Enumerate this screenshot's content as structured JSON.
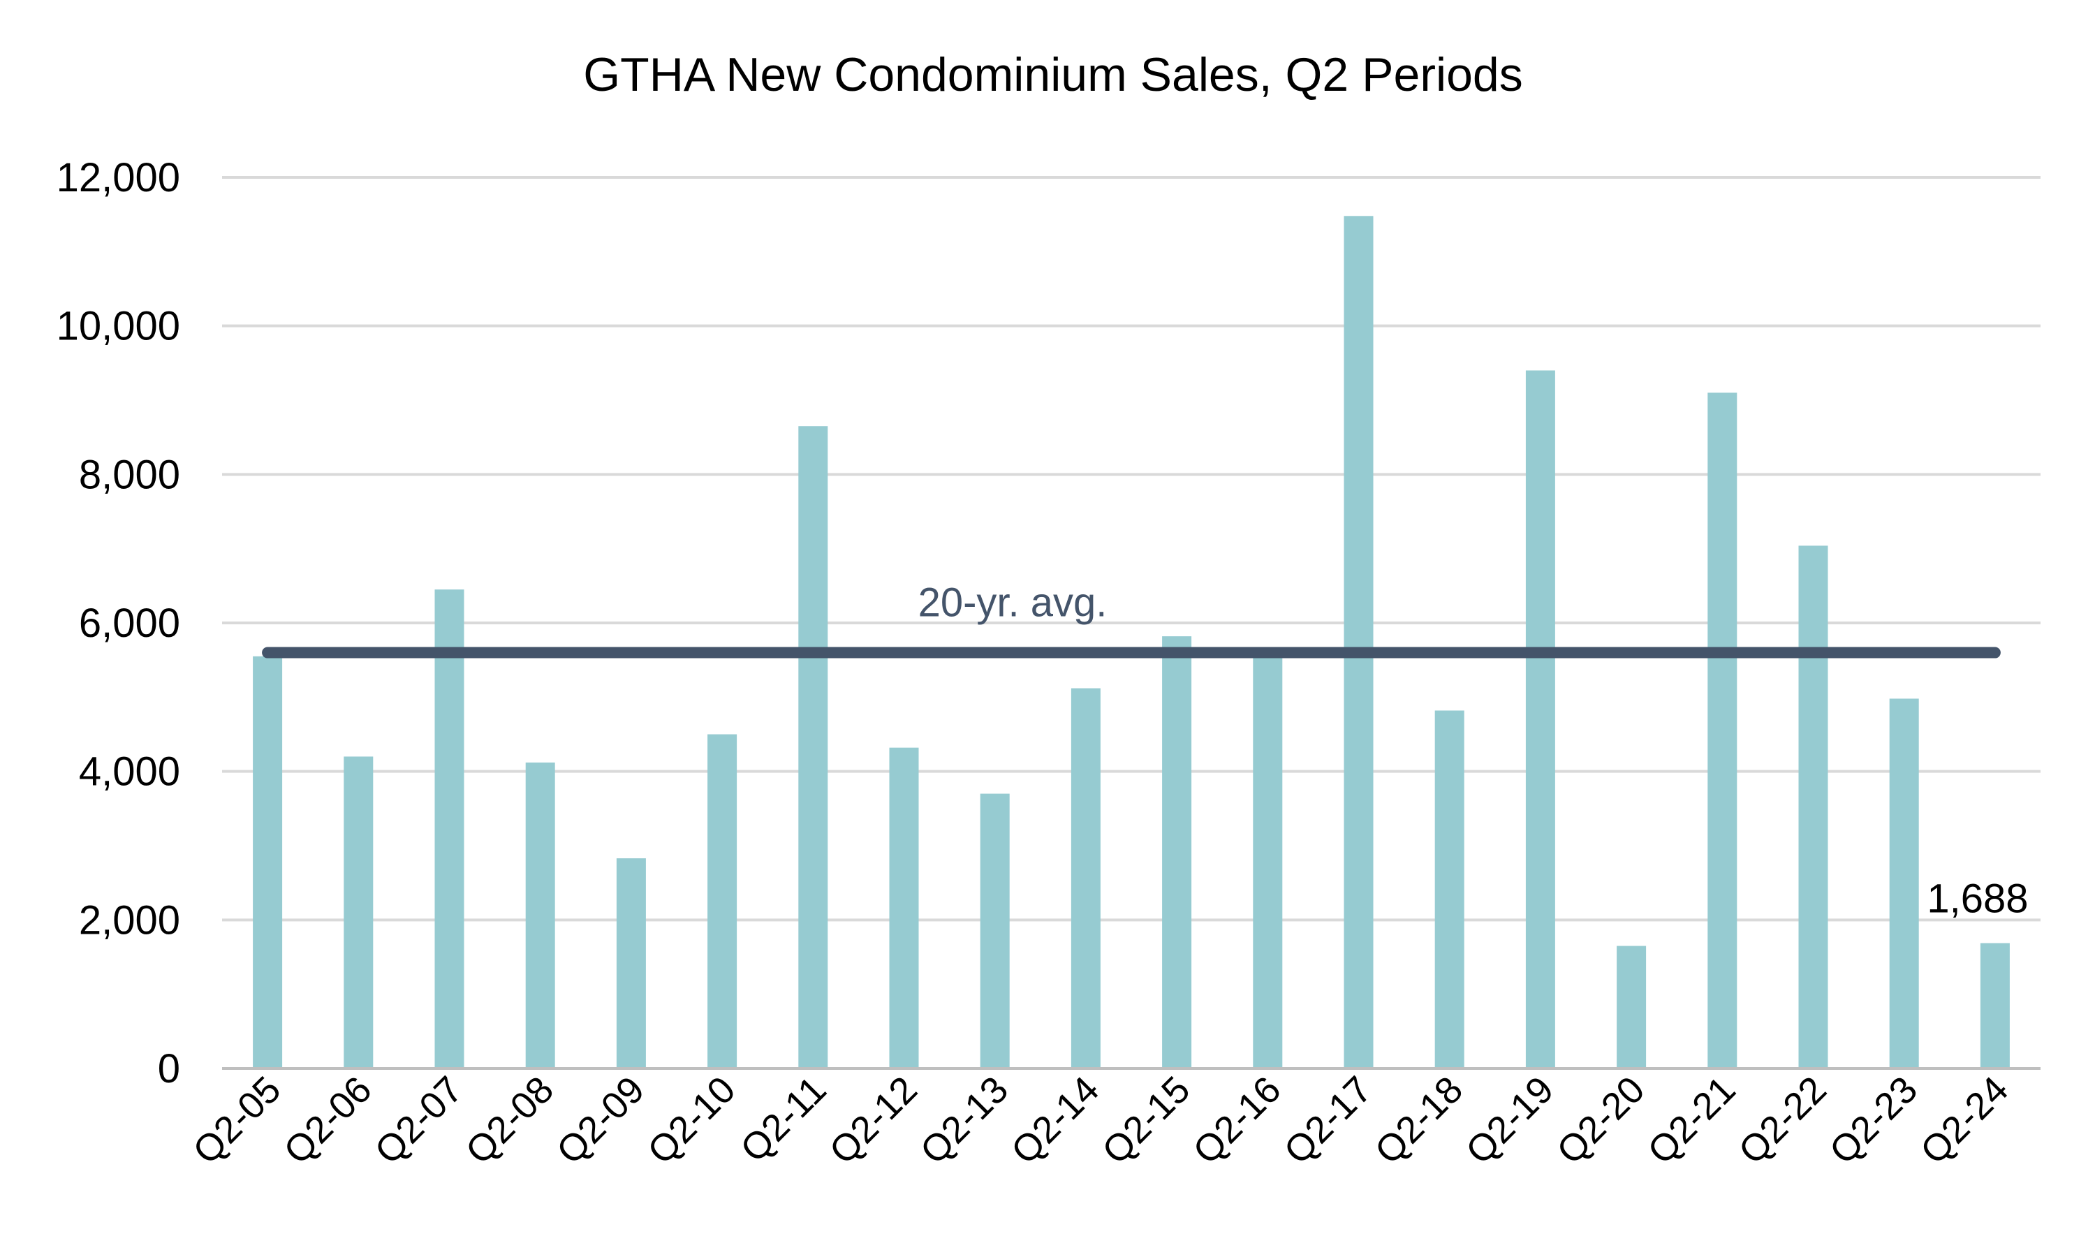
{
  "chart_data": {
    "type": "bar",
    "title": "GTHA New Condominium Sales, Q2 Periods",
    "xlabel": "",
    "ylabel": "",
    "ylim": [
      0,
      12000
    ],
    "yticks": [
      0,
      2000,
      4000,
      6000,
      8000,
      10000,
      12000
    ],
    "ytick_labels": [
      "0",
      "2,000",
      "4,000",
      "6,000",
      "8,000",
      "10,000",
      "12,000"
    ],
    "grid": true,
    "categories": [
      "Q2-05",
      "Q2-06",
      "Q2-07",
      "Q2-08",
      "Q2-09",
      "Q2-10",
      "Q2-11",
      "Q2-12",
      "Q2-13",
      "Q2-14",
      "Q2-15",
      "Q2-16",
      "Q2-17",
      "Q2-18",
      "Q2-19",
      "Q2-20",
      "Q2-21",
      "Q2-22",
      "Q2-23",
      "Q2-24"
    ],
    "values": [
      5550,
      4200,
      6450,
      4120,
      2830,
      4500,
      8650,
      4320,
      3700,
      5120,
      5820,
      5550,
      11480,
      4820,
      9400,
      1650,
      9100,
      7040,
      4980,
      1688
    ],
    "reference_line": {
      "label": "20-yr. avg.",
      "value": 5600,
      "color": "#44546a"
    },
    "data_labels": [
      {
        "category": "Q2-24",
        "text": "1,688"
      }
    ],
    "colors": {
      "bar": "#96cbd1",
      "grid": "#d9d9d9",
      "axis": "#bfbfbf",
      "avg_line": "#44546a",
      "text": "#000000"
    }
  }
}
